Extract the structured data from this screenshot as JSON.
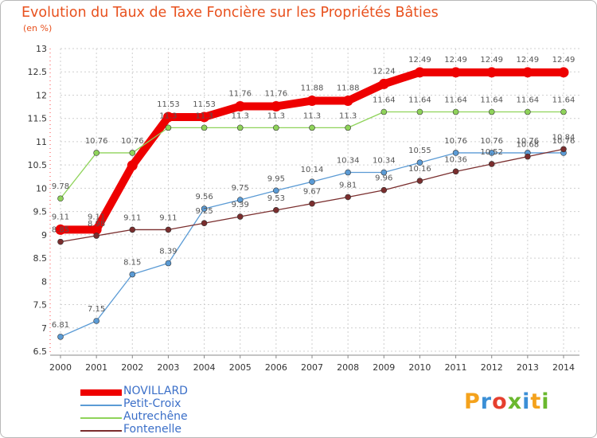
{
  "chart_data": {
    "type": "line",
    "title": "Evolution du Taux de Taxe Foncière sur les Propriétés Bâties",
    "ylabel": "(en %)",
    "xlabel": "",
    "x": [
      "2000",
      "2001",
      "2002",
      "2003",
      "2004",
      "2005",
      "2006",
      "2007",
      "2008",
      "2009",
      "2010",
      "2011",
      "2012",
      "2013",
      "2014"
    ],
    "ylim": [
      6.5,
      13
    ],
    "yticks": [
      "6.5",
      "7",
      "7.5",
      "8",
      "8.5",
      "9",
      "9.5",
      "10",
      "10.5",
      "11",
      "11.5",
      "12",
      "12.5",
      "13"
    ],
    "series": [
      {
        "name": "NOVILLARD",
        "color": "#ee0000",
        "values": [
          9.11,
          9.11,
          10.49,
          11.53,
          11.53,
          11.76,
          11.76,
          11.88,
          11.88,
          12.24,
          12.49,
          12.49,
          12.49,
          12.49,
          12.49
        ],
        "labels": [
          "9.11",
          "9.11",
          "",
          "11.53",
          "11.53",
          "11.76",
          "11.76",
          "11.88",
          "11.88",
          "12.24",
          "12.49",
          "12.49",
          "12.49",
          "12.49",
          "12.49"
        ]
      },
      {
        "name": "Petit-Croix",
        "color": "#5b9bd5",
        "values": [
          6.81,
          7.15,
          8.15,
          8.39,
          9.56,
          9.75,
          9.95,
          10.14,
          10.34,
          10.34,
          10.55,
          10.76,
          10.76,
          10.76,
          10.76
        ],
        "labels": [
          "6.81",
          "7.15",
          "8.15",
          "8.39",
          "9.56",
          "9.75",
          "9.95",
          "10.14",
          "10.34",
          "10.34",
          "10.55",
          "10.76",
          "10.76",
          "10.76",
          "10.76"
        ]
      },
      {
        "name": "Autrechêne",
        "color": "#8fd35a",
        "values": [
          9.78,
          10.76,
          10.76,
          11.3,
          11.3,
          11.3,
          11.3,
          11.3,
          11.3,
          11.64,
          11.64,
          11.64,
          11.64,
          11.64,
          11.64
        ],
        "labels": [
          "9.78",
          "10.76",
          "10.76",
          "11.3",
          "11.3",
          "11.3",
          "11.3",
          "11.3",
          "11.3",
          "11.64",
          "11.64",
          "11.64",
          "11.64",
          "11.64",
          "11.64"
        ]
      },
      {
        "name": "Fontenelle",
        "color": "#7a2e2e",
        "values": [
          8.85,
          8.98,
          9.11,
          9.11,
          9.25,
          9.39,
          9.53,
          9.67,
          9.81,
          9.96,
          10.16,
          10.36,
          10.52,
          10.68,
          10.84
        ],
        "labels": [
          "8.85",
          "8.98",
          "9.11",
          "9.11",
          "9.25",
          "9.39",
          "9.53",
          "9.67",
          "9.81",
          "9.96",
          "10.16",
          "10.36",
          "10.52",
          "10.68",
          "10.84"
        ]
      }
    ],
    "legend_position": "bottom-left"
  },
  "logo": {
    "text": "Proxiti",
    "letters": [
      "P",
      "r",
      "o",
      "x",
      "i",
      "t",
      "i"
    ],
    "colors": [
      "#f4a21c",
      "#3b8fd6",
      "#e63f2e",
      "#6ab82e",
      "#3b8fd6",
      "#f4a21c",
      "#6ab82e"
    ]
  }
}
